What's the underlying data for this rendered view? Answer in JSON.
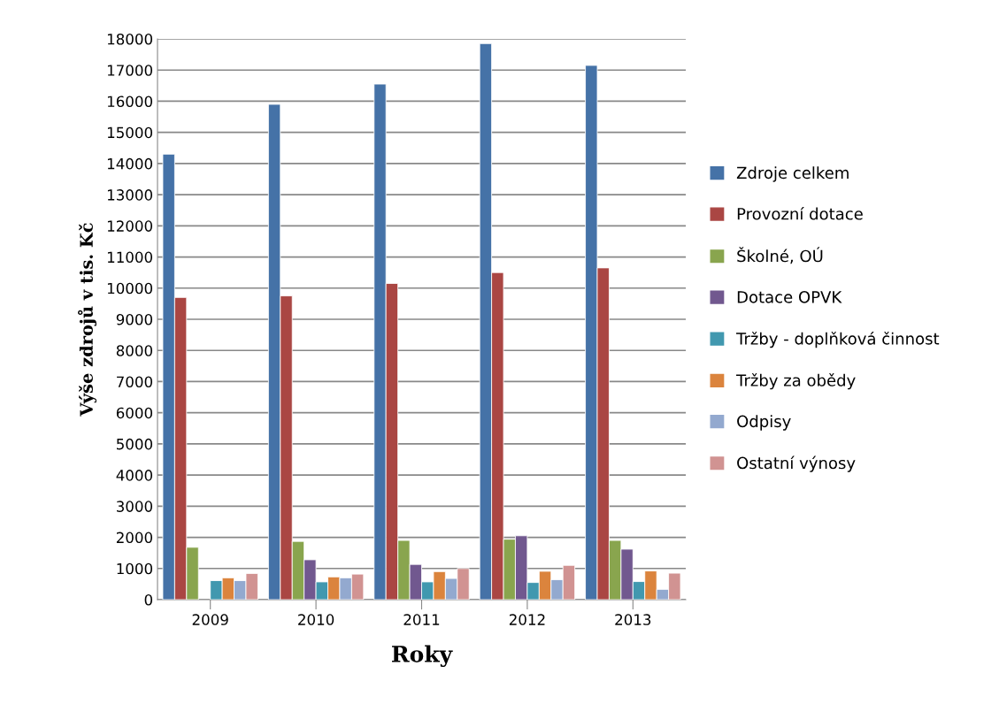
{
  "chart_data": {
    "type": "bar",
    "xlabel": "Roky",
    "ylabel": "Výše zdrojů v tis. Kč",
    "categories": [
      "2009",
      "2010",
      "2011",
      "2012",
      "2013"
    ],
    "series": [
      {
        "name": "Zdroje celkem",
        "color": "#4572a7",
        "values": [
          14300,
          15900,
          16550,
          17850,
          17150
        ]
      },
      {
        "name": "Provozní dotace",
        "color": "#aa4643",
        "values": [
          9700,
          9750,
          10150,
          10500,
          10650
        ]
      },
      {
        "name": "Školné, OÚ",
        "color": "#89a54e",
        "values": [
          1680,
          1870,
          1900,
          1940,
          1900
        ]
      },
      {
        "name": "Dotace OPVK",
        "color": "#71588f",
        "values": [
          null,
          1280,
          1130,
          2050,
          1620
        ]
      },
      {
        "name": "Tržby - doplňková činnost",
        "color": "#4198af",
        "values": [
          610,
          570,
          570,
          550,
          580
        ]
      },
      {
        "name": "Tržby za obědy",
        "color": "#db843d",
        "values": [
          700,
          730,
          900,
          910,
          920
        ]
      },
      {
        "name": "Odpisy",
        "color": "#93a9cf",
        "values": [
          610,
          700,
          680,
          640,
          330
        ]
      },
      {
        "name": "Ostatní výnosy",
        "color": "#d19392",
        "values": [
          840,
          820,
          1000,
          1100,
          850
        ]
      }
    ],
    "ylim": [
      0,
      18000
    ],
    "yticks": [
      0,
      1000,
      2000,
      3000,
      4000,
      5000,
      6000,
      7000,
      8000,
      9000,
      10000,
      11000,
      12000,
      13000,
      14000,
      15000,
      16000,
      17000,
      18000
    ],
    "grid": "y",
    "legend": "right"
  }
}
